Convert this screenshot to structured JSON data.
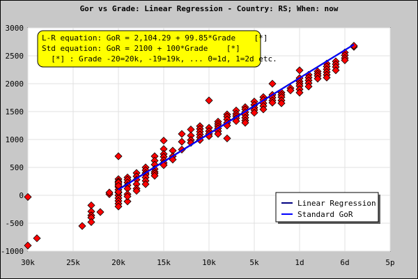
{
  "chart_data": {
    "type": "scatter",
    "title": "Gor vs Grade: Linear Regression - Country: RS; When: now",
    "equations": [
      "L-R equation: GoR = 2,104.29 + 99.85*Grade    [*]",
      "Std equation: GoR = 2100 + 100*Grade    [*]",
      "  [*] : Grade -20=20k, -19=19k, ... 0=1d, 1=2d etc."
    ],
    "x_ticks": [
      {
        "value": -30,
        "label": "30k"
      },
      {
        "value": -25,
        "label": "25k"
      },
      {
        "value": -20,
        "label": "20k"
      },
      {
        "value": -15,
        "label": "15k"
      },
      {
        "value": -10,
        "label": "10k"
      },
      {
        "value": -5,
        "label": "5k"
      },
      {
        "value": 0,
        "label": "1d"
      },
      {
        "value": 5,
        "label": "6d"
      },
      {
        "value": 10,
        "label": "5p"
      }
    ],
    "y_ticks": [
      -1000,
      -500,
      0,
      500,
      1000,
      1500,
      2000,
      2500,
      3000
    ],
    "xlim": [
      -30,
      10
    ],
    "ylim": [
      -1000,
      3000
    ],
    "grid": true,
    "legend_position": "bottom-right",
    "series": [
      {
        "name": "Linear Regression",
        "type": "line",
        "color": "#000080",
        "points": [
          [
            -20,
            107
          ],
          [
            6,
            2703
          ]
        ]
      },
      {
        "name": "Standard GoR",
        "type": "line",
        "color": "#0000ff",
        "points": [
          [
            -20,
            100
          ],
          [
            6,
            2700
          ]
        ]
      }
    ],
    "points_color": "#ff0000",
    "points": [
      [
        -30,
        -900
      ],
      [
        -30,
        -30
      ],
      [
        -29,
        -770
      ],
      [
        -24,
        -550
      ],
      [
        -23,
        -180
      ],
      [
        -23,
        -290
      ],
      [
        -23,
        -360
      ],
      [
        -23,
        -400
      ],
      [
        -23,
        -480
      ],
      [
        -22,
        -300
      ],
      [
        -21,
        20
      ],
      [
        -21,
        50
      ],
      [
        -19,
        -110
      ],
      [
        -20,
        700
      ],
      [
        -20,
        290
      ],
      [
        -20,
        250
      ],
      [
        -20,
        200
      ],
      [
        -20,
        150
      ],
      [
        -20,
        100
      ],
      [
        -20,
        50
      ],
      [
        -20,
        0
      ],
      [
        -20,
        -50
      ],
      [
        -20,
        -100
      ],
      [
        -20,
        -150
      ],
      [
        -20,
        -200
      ],
      [
        -20,
        230
      ],
      [
        -20,
        170
      ],
      [
        -20,
        60
      ],
      [
        -19,
        320
      ],
      [
        -19,
        280
      ],
      [
        -19,
        230
      ],
      [
        -19,
        180
      ],
      [
        -19,
        120
      ],
      [
        -19,
        20
      ],
      [
        -19,
        -20
      ],
      [
        -18,
        400
      ],
      [
        -18,
        340
      ],
      [
        -18,
        280
      ],
      [
        -18,
        200
      ],
      [
        -18,
        120
      ],
      [
        -18,
        80
      ],
      [
        -17,
        500
      ],
      [
        -17,
        450
      ],
      [
        -17,
        400
      ],
      [
        -17,
        370
      ],
      [
        -17,
        320
      ],
      [
        -17,
        260
      ],
      [
        -17,
        200
      ],
      [
        -16,
        700
      ],
      [
        -16,
        620
      ],
      [
        -16,
        550
      ],
      [
        -16,
        470
      ],
      [
        -16,
        420
      ],
      [
        -16,
        390
      ],
      [
        -16,
        350
      ],
      [
        -15,
        980
      ],
      [
        -15,
        830
      ],
      [
        -15,
        740
      ],
      [
        -15,
        690
      ],
      [
        -15,
        630
      ],
      [
        -15,
        580
      ],
      [
        -15,
        540
      ],
      [
        -14,
        800
      ],
      [
        -14,
        700
      ],
      [
        -14,
        640
      ],
      [
        -13,
        1100
      ],
      [
        -13,
        960
      ],
      [
        -13,
        820
      ],
      [
        -12,
        1180
      ],
      [
        -12,
        1070
      ],
      [
        -12,
        990
      ],
      [
        -12,
        940
      ],
      [
        -11,
        1240
      ],
      [
        -11,
        1190
      ],
      [
        -11,
        1140
      ],
      [
        -11,
        1090
      ],
      [
        -11,
        1040
      ],
      [
        -11,
        990
      ],
      [
        -10,
        1700
      ],
      [
        -10,
        1210
      ],
      [
        -10,
        1150
      ],
      [
        -10,
        1100
      ],
      [
        -10,
        1060
      ],
      [
        -9,
        1320
      ],
      [
        -9,
        1280
      ],
      [
        -9,
        1240
      ],
      [
        -9,
        1200
      ],
      [
        -9,
        1150
      ],
      [
        -9,
        1100
      ],
      [
        -8,
        1450
      ],
      [
        -8,
        1410
      ],
      [
        -8,
        1360
      ],
      [
        -8,
        1300
      ],
      [
        -8,
        1250
      ],
      [
        -8,
        1020
      ],
      [
        -7,
        1520
      ],
      [
        -7,
        1460
      ],
      [
        -7,
        1420
      ],
      [
        -7,
        1380
      ],
      [
        -7,
        1330
      ],
      [
        -6,
        1580
      ],
      [
        -6,
        1540
      ],
      [
        -6,
        1490
      ],
      [
        -6,
        1440
      ],
      [
        -6,
        1390
      ],
      [
        -6,
        1340
      ],
      [
        -6,
        1300
      ],
      [
        -5,
        1680
      ],
      [
        -5,
        1620
      ],
      [
        -5,
        1570
      ],
      [
        -5,
        1530
      ],
      [
        -5,
        1480
      ],
      [
        -4,
        1760
      ],
      [
        -4,
        1710
      ],
      [
        -4,
        1650
      ],
      [
        -4,
        1600
      ],
      [
        -4,
        1540
      ],
      [
        -3,
        2000
      ],
      [
        -3,
        1800
      ],
      [
        -3,
        1750
      ],
      [
        -3,
        1700
      ],
      [
        -3,
        1660
      ],
      [
        -2,
        1840
      ],
      [
        -2,
        1800
      ],
      [
        -2,
        1760
      ],
      [
        -2,
        1700
      ],
      [
        -2,
        1650
      ],
      [
        -1,
        1920
      ],
      [
        -1,
        1880
      ],
      [
        0,
        2240
      ],
      [
        0,
        2100
      ],
      [
        0,
        2040
      ],
      [
        0,
        2000
      ],
      [
        0,
        1960
      ],
      [
        0,
        1900
      ],
      [
        0,
        1840
      ],
      [
        1,
        2160
      ],
      [
        1,
        2110
      ],
      [
        1,
        2060
      ],
      [
        1,
        2010
      ],
      [
        1,
        1950
      ],
      [
        2,
        2220
      ],
      [
        2,
        2180
      ],
      [
        2,
        2140
      ],
      [
        2,
        2090
      ],
      [
        3,
        2360
      ],
      [
        3,
        2310
      ],
      [
        3,
        2260
      ],
      [
        3,
        2210
      ],
      [
        3,
        2160
      ],
      [
        3,
        2110
      ],
      [
        4,
        2400
      ],
      [
        4,
        2350
      ],
      [
        4,
        2300
      ],
      [
        4,
        2240
      ],
      [
        5,
        2560
      ],
      [
        5,
        2510
      ],
      [
        5,
        2460
      ],
      [
        5,
        2420
      ],
      [
        6,
        2660
      ],
      [
        6,
        2680
      ]
    ]
  }
}
